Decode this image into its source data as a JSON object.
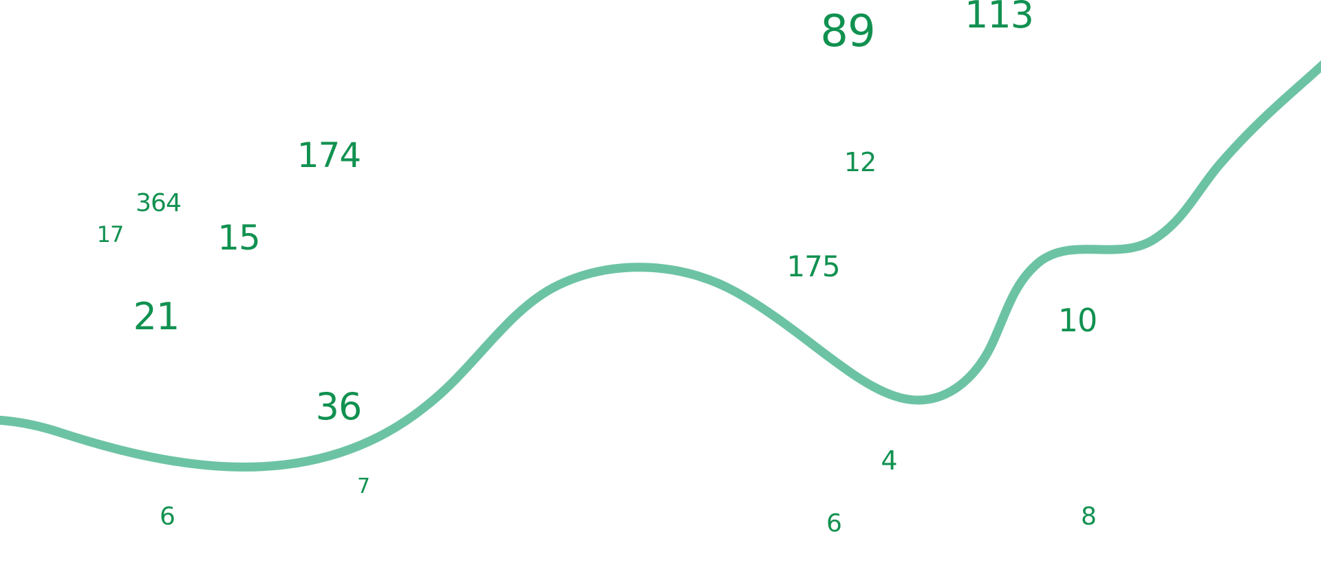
{
  "colors": {
    "number": "#119150",
    "curve": "#6cc3a4",
    "background": "#ffffff"
  },
  "numbers": [
    "89",
    "113",
    "364",
    "174",
    "12",
    "17",
    "15",
    "175",
    "21",
    "10",
    "36",
    "4",
    "7",
    "6",
    "6",
    "8"
  ]
}
